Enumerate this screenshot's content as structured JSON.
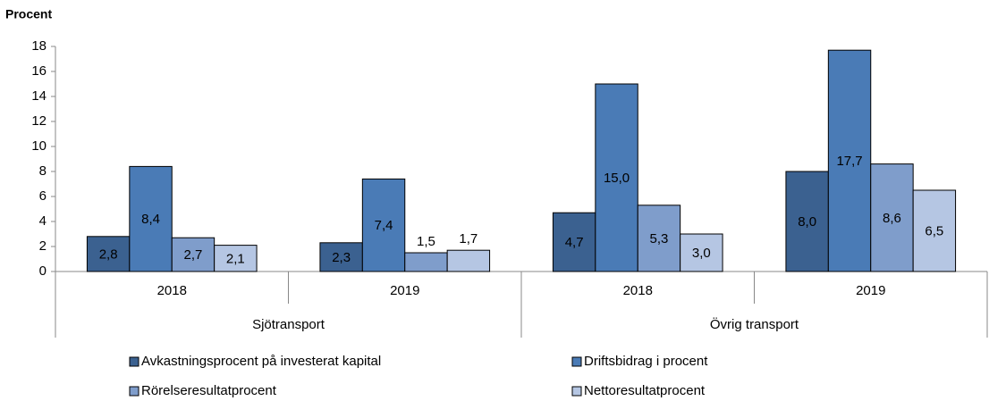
{
  "chart_data": {
    "type": "bar",
    "ylabel": "Procent",
    "categories": [
      "2018",
      "2019",
      "2018",
      "2019"
    ],
    "category_groups": [
      "Sjötransport",
      "Övrig transport"
    ],
    "series": [
      {
        "name": "Avkastningsprocent på investerat kapital",
        "color": "#3b6190",
        "values": [
          2.8,
          2.3,
          4.7,
          8.0
        ],
        "value_labels": [
          "2,8",
          "2,3",
          "4,7",
          "8,0"
        ]
      },
      {
        "name": "Driftsbidrag i procent",
        "color": "#4a7bb6",
        "values": [
          8.4,
          7.4,
          15.0,
          17.7
        ],
        "value_labels": [
          "8,4",
          "7,4",
          "15,0",
          "17,7"
        ]
      },
      {
        "name": "Rörelseresultatprocent",
        "color": "#7f9dcb",
        "values": [
          2.7,
          1.5,
          5.3,
          8.6
        ],
        "value_labels": [
          "2,7",
          "1,5",
          "5,3",
          "8,6"
        ]
      },
      {
        "name": "Nettoresultatprocent",
        "color": "#b5c6e3",
        "values": [
          2.1,
          1.7,
          3.0,
          6.5
        ],
        "value_labels": [
          "2,1",
          "1,7",
          "3,0",
          "6,5"
        ]
      }
    ],
    "ylim": [
      0,
      18
    ],
    "yticks": [
      0,
      2,
      4,
      6,
      8,
      10,
      12,
      14,
      16,
      18
    ],
    "grid": false
  }
}
